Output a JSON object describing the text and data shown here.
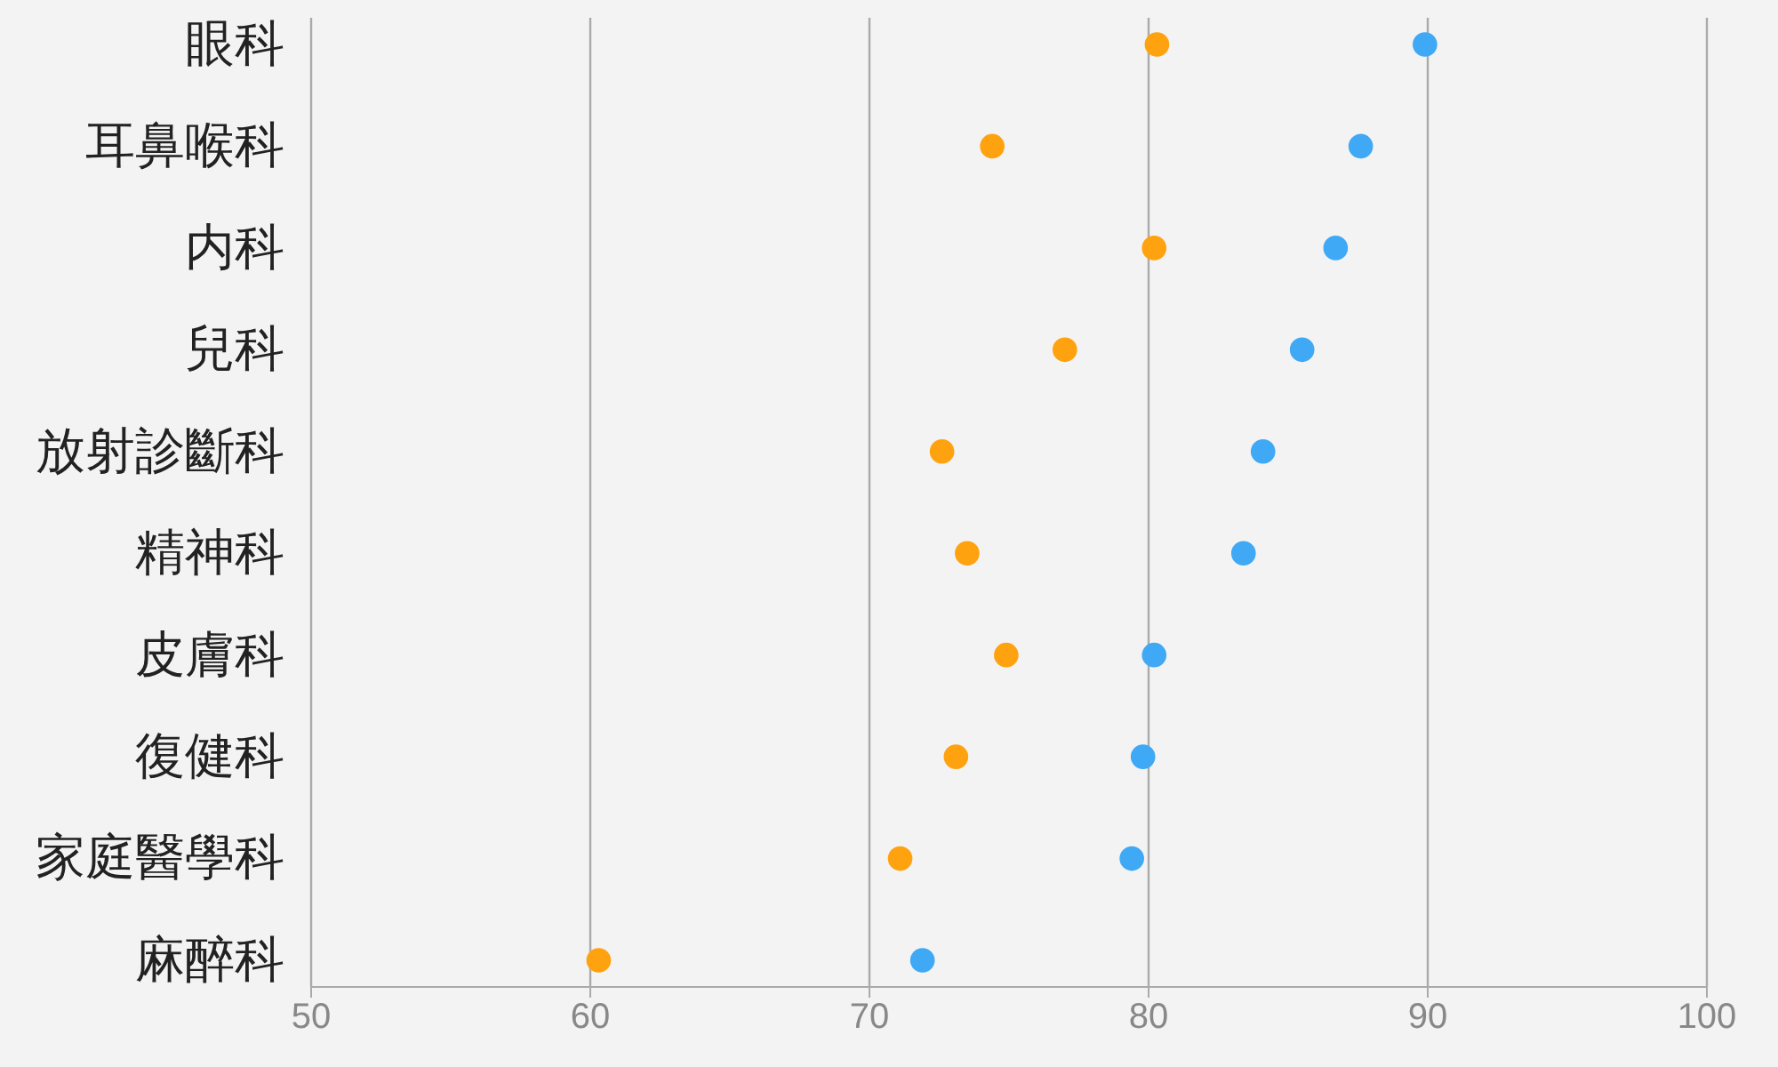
{
  "chart_data": {
    "type": "scatter",
    "categories": [
      "眼科",
      "耳鼻喉科",
      "内科",
      "兒科",
      "放射診斷科",
      "精神科",
      "皮膚科",
      "復健科",
      "家庭醫學科",
      "麻醉科"
    ],
    "orientation": "horizontal",
    "marker": "circle",
    "grid": "x",
    "xlim": [
      50,
      100
    ],
    "xticks": [
      50,
      60,
      70,
      80,
      90,
      100
    ],
    "series": [
      {
        "color": "#ffa20f",
        "values": [
          80.3,
          74.4,
          80.2,
          77.0,
          72.6,
          73.5,
          74.9,
          73.1,
          71.1,
          60.3
        ]
      },
      {
        "color": "#3fa9f5",
        "values": [
          89.9,
          87.6,
          86.7,
          85.5,
          84.1,
          83.4,
          80.2,
          79.8,
          79.4,
          71.9
        ]
      }
    ]
  }
}
